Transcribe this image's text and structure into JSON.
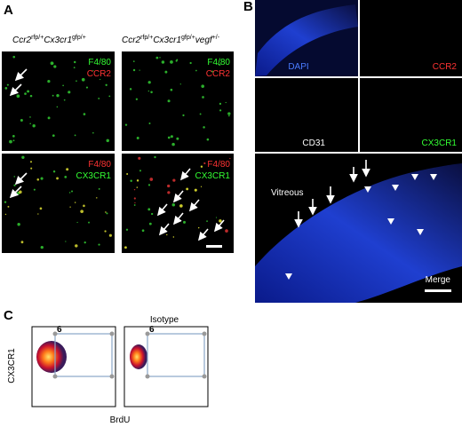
{
  "panel_a": {
    "label": "A",
    "genotypes": [
      [
        "Ccr2",
        "rfp/+",
        "Cx3cr1",
        "gfp/+"
      ],
      [
        "Ccr2",
        "rfp/+",
        "Cx3cr1",
        "gfp/+",
        "vegf",
        "+/-"
      ]
    ],
    "rows": [
      [
        "F4/80",
        "CCR2"
      ],
      [
        "F4/80",
        "CX3CR1"
      ]
    ]
  },
  "panel_b": {
    "label": "B",
    "channels": [
      "DAPI",
      "CCR2",
      "CD31",
      "CX3CR1"
    ],
    "annotations": [
      "Vitreous",
      "Merge"
    ]
  },
  "panel_c": {
    "label": "C",
    "plot_title": "Isotype",
    "gate_labels": [
      "6",
      "6"
    ],
    "y_label": "CX3CR1",
    "x_label": "BrdU"
  }
}
